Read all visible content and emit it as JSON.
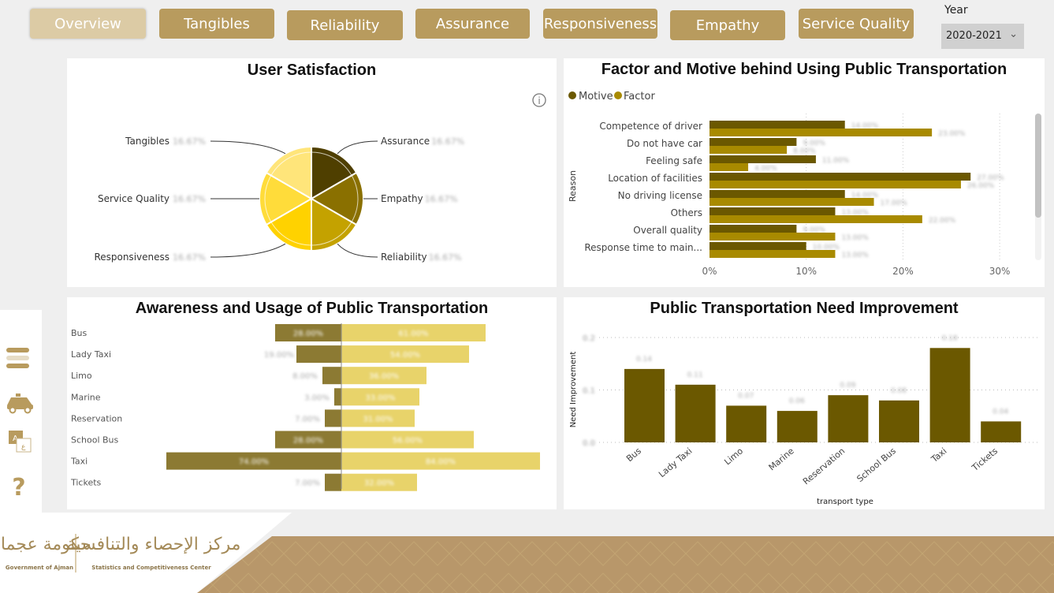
{
  "nav": [
    {
      "label": "Overview",
      "active": true
    },
    {
      "label": "Tangibles"
    },
    {
      "label": "Reliability"
    },
    {
      "label": "Assurance"
    },
    {
      "label": "Responsiveness"
    },
    {
      "label": "Empathy"
    },
    {
      "label": "Service Quality"
    }
  ],
  "year": {
    "label": "Year",
    "value": "2020-2021"
  },
  "sidebar": {
    "icons": [
      "menu-icon",
      "taxi-icon",
      "language-icon",
      "help-icon"
    ]
  },
  "colors": {
    "gold": "#b89b5e",
    "gold_light": "#dccba5",
    "dark": "#6b5800"
  },
  "footer": {
    "gov_text": "Government of Ajman",
    "center_text": "Statistics and Competitiveness Center",
    "gov_arabic": "حكومة عجمان",
    "center_arabic": "مركز الإحصاء والتنافسية"
  },
  "chart_data": [
    {
      "type": "pie",
      "title": "User Satisfaction",
      "categories": [
        "Assurance",
        "Empathy",
        "Reliability",
        "Responsiveness",
        "Service Quality",
        "Tangibles"
      ],
      "values": [
        16.67,
        16.67,
        16.67,
        16.67,
        16.67,
        16.67
      ],
      "labels": [
        "16.67%",
        "16.67%",
        "16.67%",
        "16.67%",
        "16.67%",
        "16.67%"
      ],
      "colors": [
        "#4f3f00",
        "#8a7000",
        "#c4a200",
        "#ffd200",
        "#ffdc3a",
        "#ffe57a"
      ]
    },
    {
      "type": "bar",
      "orientation": "horizontal",
      "title": "Factor and Motive behind Using Public Transportation",
      "ylabel": "Reason",
      "categories": [
        "Competence of driver",
        "Do not have car",
        "Feeling safe",
        "Location of facilities",
        "No driving license",
        "Others",
        "Overall quality",
        "Response time to main..."
      ],
      "series": [
        {
          "name": "Motive",
          "values": [
            14,
            9,
            11,
            27,
            14,
            13,
            9,
            10
          ],
          "color": "#6b5800"
        },
        {
          "name": "Factor",
          "values": [
            23,
            8,
            4,
            26,
            17,
            22,
            13,
            13
          ],
          "color": "#a88a00"
        }
      ],
      "xticks": [
        "0%",
        "10%",
        "20%",
        "30%"
      ],
      "xlim": [
        0,
        30
      ],
      "legend": "top-left"
    },
    {
      "type": "bar",
      "orientation": "horizontal-diverging",
      "title": "Awareness and Usage of Public Transportation",
      "categories": [
        "Bus",
        "Lady Taxi",
        "Limo",
        "Marine",
        "Reservation",
        "School Bus",
        "Taxi",
        "Tickets"
      ],
      "series": [
        {
          "values": [
            28,
            19,
            8,
            3,
            7,
            28,
            74,
            7
          ],
          "color": "#8c7a33"
        },
        {
          "values": [
            61,
            54,
            36,
            33,
            31,
            56,
            84,
            32
          ],
          "color": "#e8d36a"
        }
      ]
    },
    {
      "type": "bar",
      "title": "Public Transportation Need Improvement",
      "xlabel": "transport type",
      "ylabel": "Need Improvement",
      "categories": [
        "Bus",
        "Lady Taxi",
        "Limo",
        "Marine",
        "Reservation",
        "School Bus",
        "Taxi",
        "Tickets"
      ],
      "values": [
        0.14,
        0.11,
        0.07,
        0.06,
        0.09,
        0.08,
        0.18,
        0.04
      ],
      "yticks": [
        "0.0",
        "0.1",
        "0.2"
      ],
      "ylim": [
        0,
        0.2
      ],
      "color": "#6b5800",
      "grid": true
    }
  ]
}
